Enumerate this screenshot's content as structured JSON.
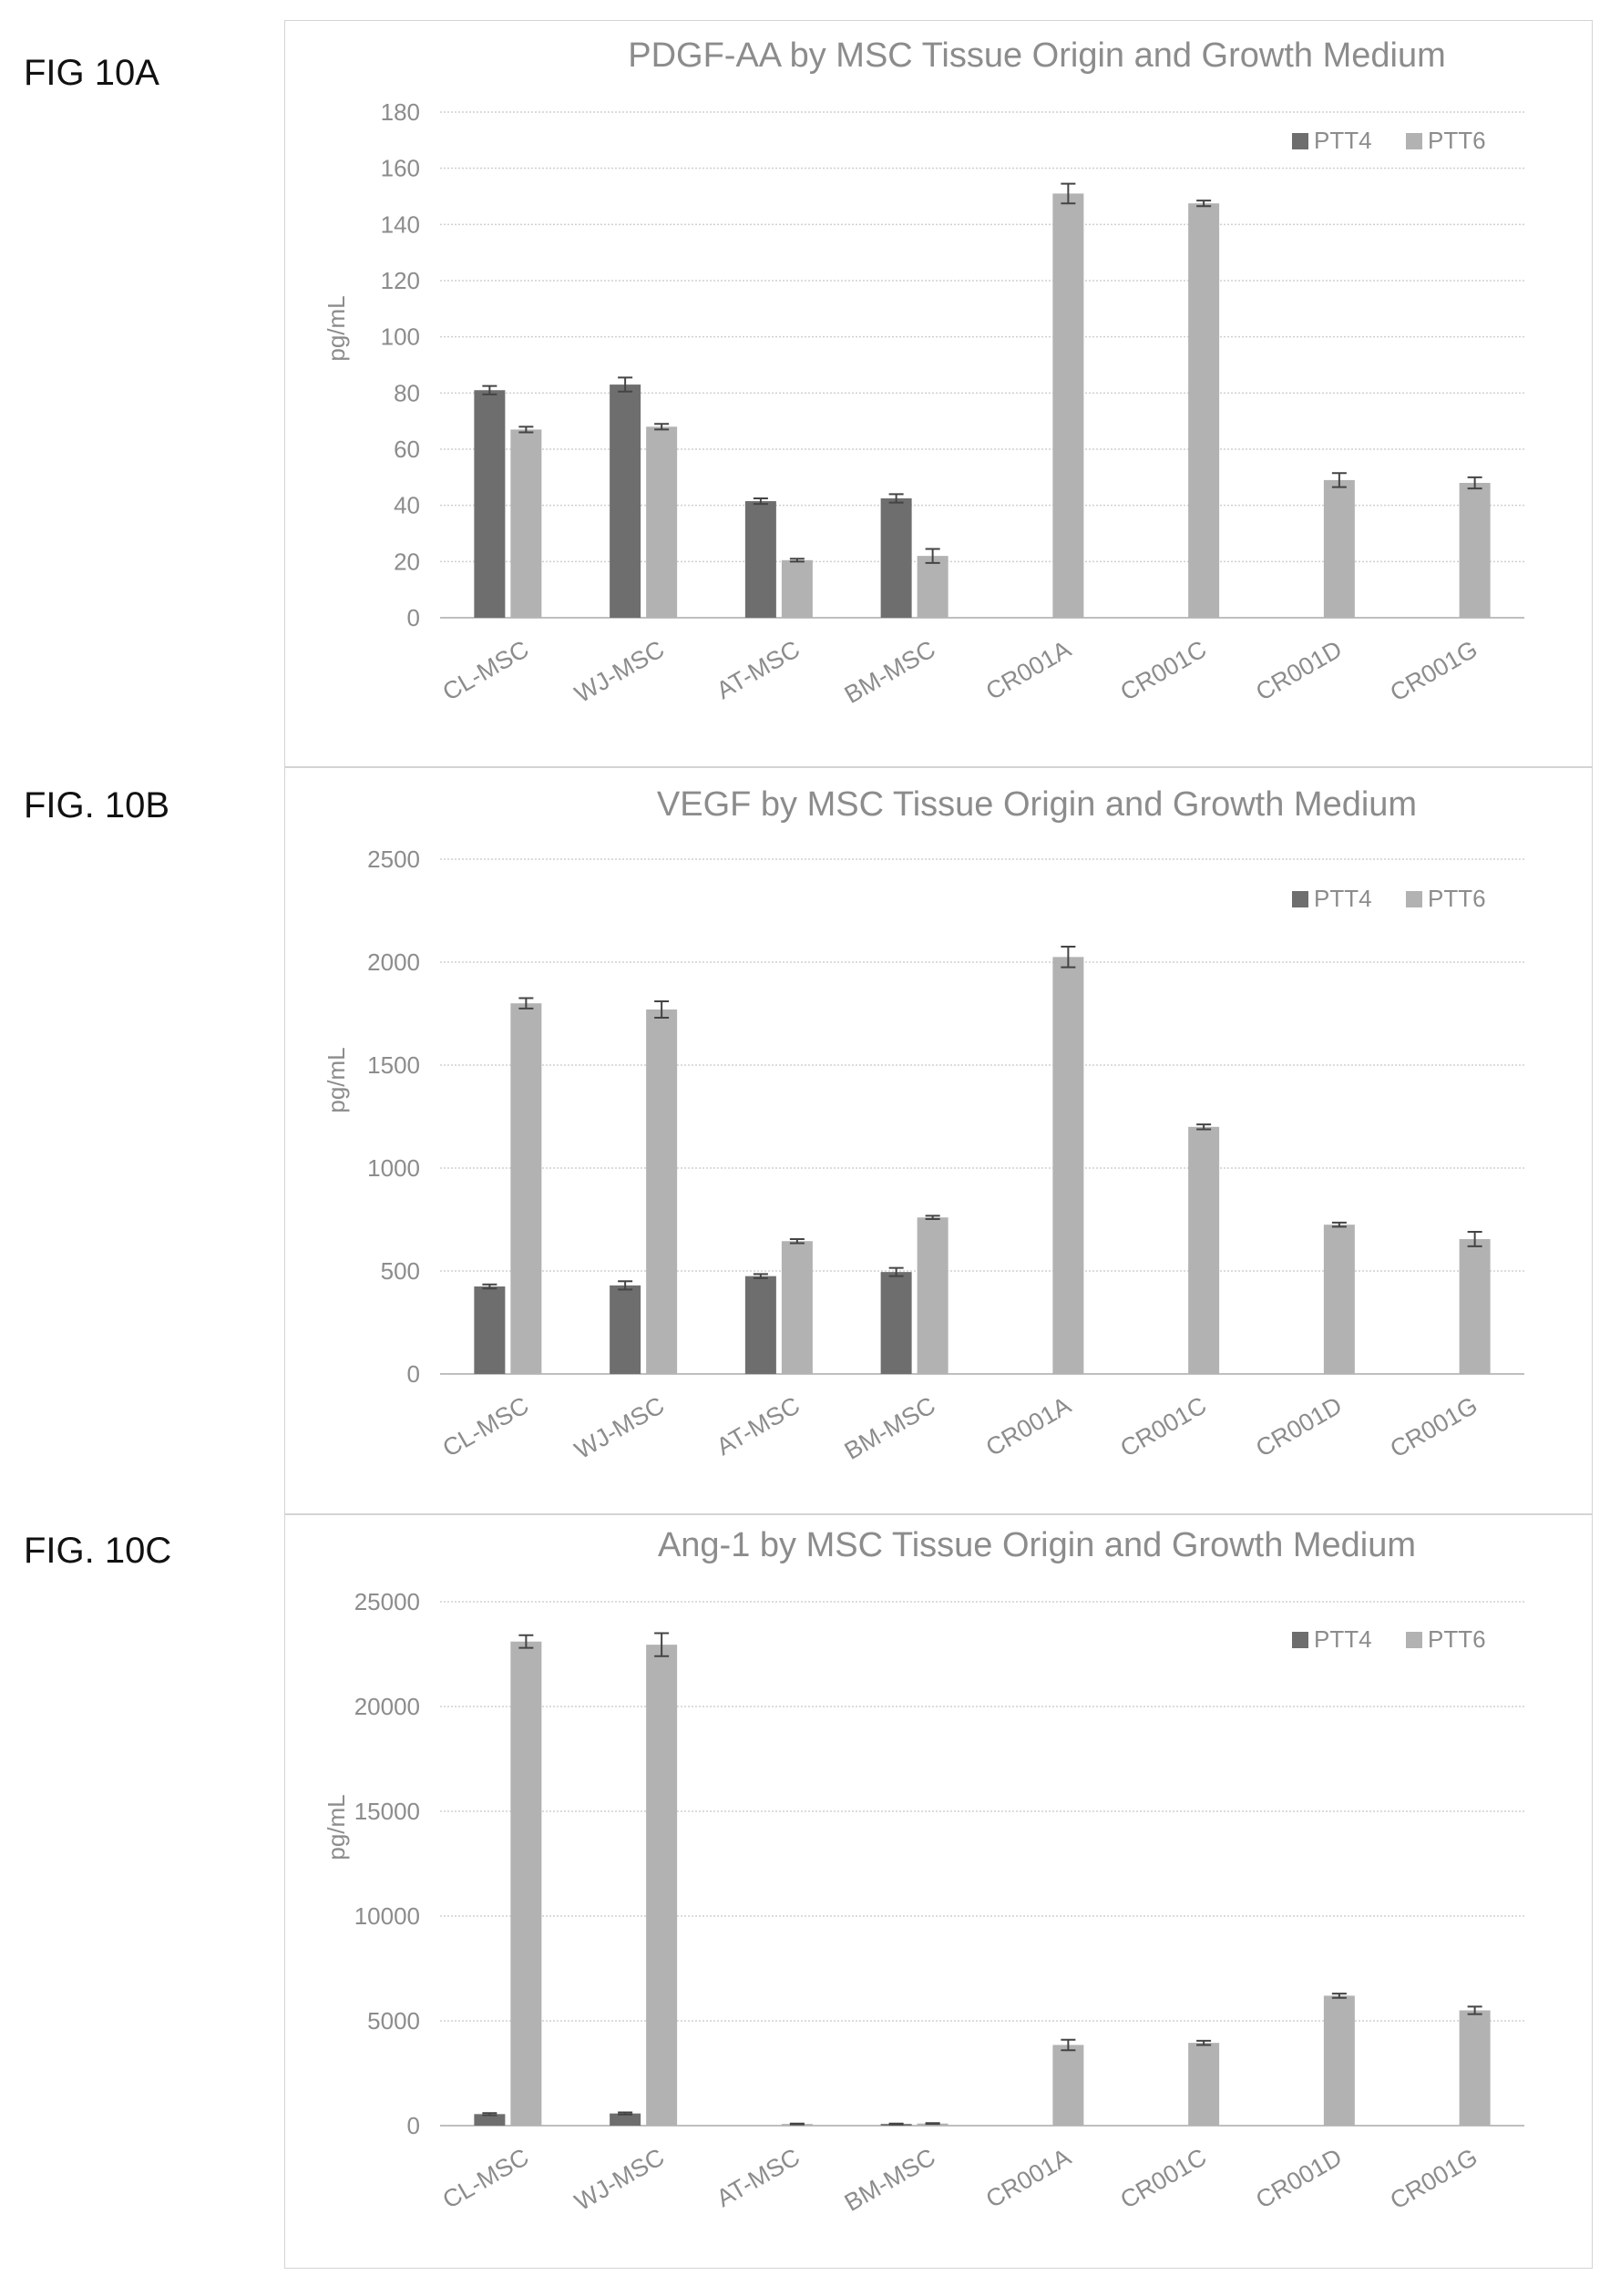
{
  "figures": [
    {
      "label": "FIG 10A"
    },
    {
      "label": "FIG. 10B"
    },
    {
      "label": "FIG. 10C"
    }
  ],
  "colors": {
    "PTT4": "#6e6e6e",
    "PTT6": "#b2b2b2",
    "grid": "#d0d0d0",
    "text": "#8c8c8c"
  },
  "chart_data": [
    {
      "type": "bar",
      "title": "PDGF-AA by MSC Tissue Origin and Growth Medium",
      "xlabel": "",
      "ylabel": "pg/mL",
      "ylim": [
        0,
        180
      ],
      "yticks": [
        0,
        20,
        40,
        60,
        80,
        100,
        120,
        140,
        160,
        180
      ],
      "grid": true,
      "legend": "top-right",
      "categories": [
        "CL-MSC",
        "WJ-MSC",
        "AT-MSC",
        "BM-MSC",
        "CR001A",
        "CR001C",
        "CR001D",
        "CR001G"
      ],
      "series": [
        {
          "name": "PTT4",
          "values": [
            81,
            83,
            41.5,
            42.5,
            null,
            null,
            null,
            null
          ],
          "errors": [
            1.5,
            2.5,
            1,
            1.5,
            null,
            null,
            null,
            null
          ]
        },
        {
          "name": "PTT6",
          "values": [
            67,
            68,
            20.5,
            22,
            151,
            147.5,
            49,
            48
          ],
          "errors": [
            1,
            1,
            0.5,
            2.5,
            3.5,
            1,
            2.5,
            2
          ]
        }
      ]
    },
    {
      "type": "bar",
      "title": "VEGF by MSC Tissue Origin and Growth Medium",
      "xlabel": "",
      "ylabel": "pg/mL",
      "ylim": [
        0,
        2500
      ],
      "yticks": [
        0,
        500,
        1000,
        1500,
        2000,
        2500
      ],
      "grid": true,
      "legend": "top-right",
      "categories": [
        "CL-MSC",
        "WJ-MSC",
        "AT-MSC",
        "BM-MSC",
        "CR001A",
        "CR001C",
        "CR001D",
        "CR001G"
      ],
      "series": [
        {
          "name": "PTT4",
          "values": [
            425,
            430,
            475,
            495,
            null,
            null,
            null,
            null
          ],
          "errors": [
            10,
            20,
            10,
            20,
            null,
            null,
            null,
            null
          ]
        },
        {
          "name": "PTT6",
          "values": [
            1800,
            1770,
            645,
            760,
            2025,
            1200,
            725,
            655
          ],
          "errors": [
            25,
            40,
            10,
            8,
            50,
            12,
            10,
            35
          ]
        }
      ]
    },
    {
      "type": "bar",
      "title": "Ang-1 by MSC Tissue Origin and Growth Medium",
      "xlabel": "",
      "ylabel": "pg/mL",
      "ylim": [
        0,
        25000
      ],
      "yticks": [
        0,
        5000,
        10000,
        15000,
        20000,
        25000
      ],
      "grid": true,
      "legend": "top-right",
      "categories": [
        "CL-MSC",
        "WJ-MSC",
        "AT-MSC",
        "BM-MSC",
        "CR001A",
        "CR001C",
        "CR001D",
        "CR001G"
      ],
      "series": [
        {
          "name": "PTT4",
          "values": [
            550,
            580,
            null,
            80,
            null,
            null,
            null,
            null
          ],
          "errors": [
            50,
            50,
            null,
            20,
            null,
            null,
            null,
            null
          ]
        },
        {
          "name": "PTT6",
          "values": [
            23100,
            22950,
            80,
            100,
            3850,
            3950,
            6200,
            5500
          ],
          "errors": [
            300,
            550,
            20,
            20,
            250,
            100,
            100,
            180
          ]
        }
      ]
    }
  ]
}
